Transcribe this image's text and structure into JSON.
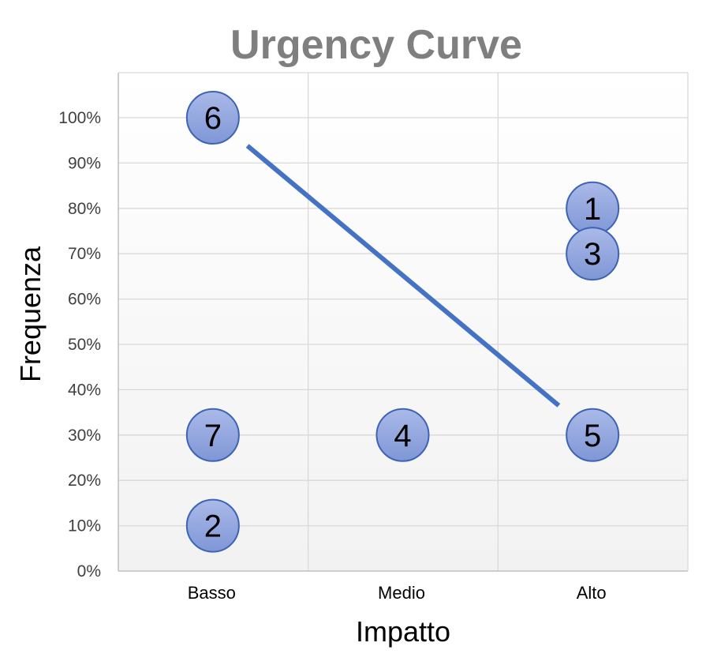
{
  "colors": {
    "bubble_fill_top": "#aab9e8",
    "bubble_fill_bottom": "#7f97d6",
    "bubble_stroke": "#3e63b5",
    "line": "#4472c4",
    "grid": "#d9d9d9",
    "plot_border": "#bfbfbf",
    "plot_bg_top": "#ffffff",
    "plot_bg_bottom": "#f2f2f2",
    "title": "#7f7f7f"
  },
  "chart_data": {
    "type": "scatter",
    "title": "Urgency Curve",
    "xlabel": "Impatto",
    "ylabel": "Frequenza",
    "categories": [
      "Basso",
      "Medio",
      "Alto"
    ],
    "ylim": [
      0,
      110
    ],
    "yticks": [
      0,
      10,
      20,
      30,
      40,
      50,
      60,
      70,
      80,
      90,
      100
    ],
    "ytick_labels": [
      "0%",
      "10%",
      "20%",
      "30%",
      "40%",
      "50%",
      "60%",
      "70%",
      "80%",
      "90%",
      "100%"
    ],
    "grid": true,
    "points": [
      {
        "label": "1",
        "category": "Alto",
        "y": 80
      },
      {
        "label": "2",
        "category": "Basso",
        "y": 10
      },
      {
        "label": "3",
        "category": "Alto",
        "y": 70
      },
      {
        "label": "4",
        "category": "Medio",
        "y": 30
      },
      {
        "label": "5",
        "category": "Alto",
        "y": 30
      },
      {
        "label": "6",
        "category": "Basso",
        "y": 100
      },
      {
        "label": "7",
        "category": "Basso",
        "y": 30
      }
    ],
    "curve": [
      {
        "x": 0.18,
        "y": 93.8
      },
      {
        "x": 1.82,
        "y": 36.5
      }
    ]
  }
}
